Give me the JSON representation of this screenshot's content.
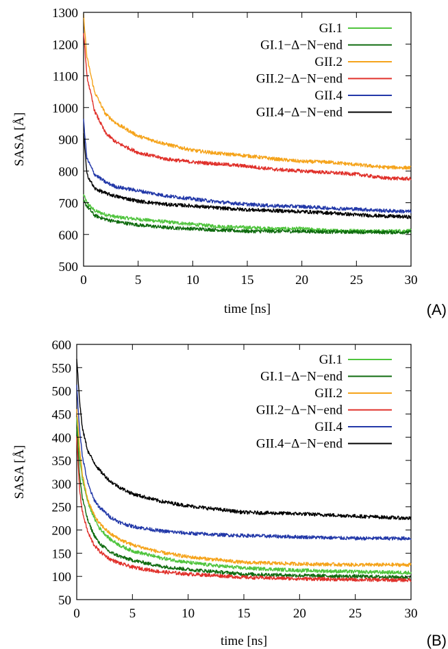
{
  "chart_data": [
    {
      "panel": "(A)",
      "type": "line",
      "xlabel": "time [ns]",
      "ylabel": "SASA [Å]",
      "xlim": [
        0,
        30
      ],
      "ylim": [
        500,
        1300
      ],
      "xticks": [
        0,
        5,
        10,
        15,
        20,
        25,
        30
      ],
      "yticks": [
        500,
        600,
        700,
        800,
        900,
        1000,
        1100,
        1200,
        1300
      ],
      "grid": false,
      "legend_position": "top-right",
      "series": [
        {
          "name": "GI.1",
          "color": "#4fc43d",
          "x": [
            0,
            0.3,
            1,
            2,
            3,
            5,
            7.5,
            10,
            12.5,
            15,
            17.5,
            20,
            22.5,
            25,
            27.5,
            30
          ],
          "values": [
            725,
            700,
            675,
            663,
            655,
            648,
            640,
            632,
            625,
            622,
            618,
            618,
            612,
            612,
            610,
            612
          ]
        },
        {
          "name": "GI.1−Δ−N−end",
          "color": "#0f6b0f",
          "x": [
            0,
            0.3,
            1,
            2,
            3,
            5,
            7.5,
            10,
            12.5,
            15,
            17.5,
            20,
            22.5,
            25,
            27.5,
            30
          ],
          "values": [
            705,
            690,
            660,
            648,
            640,
            630,
            622,
            618,
            614,
            610,
            610,
            610,
            608,
            608,
            607,
            607
          ]
        },
        {
          "name": "GII.2",
          "color": "#f5a31a",
          "x": [
            0,
            0.3,
            1,
            2,
            3,
            5,
            7.5,
            10,
            12.5,
            15,
            17.5,
            20,
            22.5,
            25,
            27.5,
            30
          ],
          "values": [
            1290,
            1160,
            1050,
            980,
            950,
            910,
            885,
            865,
            855,
            848,
            838,
            830,
            828,
            820,
            812,
            810
          ]
        },
        {
          "name": "GII.2−Δ−N−end",
          "color": "#e0302a",
          "x": [
            0,
            0.3,
            1,
            2,
            3,
            5,
            7.5,
            10,
            12.5,
            15,
            17.5,
            20,
            22.5,
            25,
            27.5,
            30
          ],
          "values": [
            1240,
            1100,
            990,
            920,
            890,
            858,
            838,
            828,
            822,
            815,
            805,
            800,
            795,
            790,
            778,
            775
          ]
        },
        {
          "name": "GII.4",
          "color": "#2238a8",
          "x": [
            0,
            0.3,
            1,
            2,
            3,
            5,
            7.5,
            10,
            12.5,
            15,
            17.5,
            20,
            22.5,
            25,
            27.5,
            30
          ],
          "values": [
            960,
            840,
            790,
            765,
            750,
            738,
            722,
            712,
            702,
            695,
            690,
            688,
            683,
            680,
            675,
            672
          ]
        },
        {
          "name": "GII.4−Δ−N−end",
          "color": "#000000",
          "x": [
            0,
            0.3,
            1,
            2,
            3,
            5,
            7.5,
            10,
            12.5,
            15,
            17.5,
            20,
            22.5,
            25,
            27.5,
            30
          ],
          "values": [
            920,
            790,
            745,
            730,
            720,
            705,
            695,
            690,
            683,
            678,
            675,
            672,
            668,
            662,
            658,
            655
          ]
        }
      ]
    },
    {
      "panel": "(B)",
      "type": "line",
      "xlabel": "time [ns]",
      "ylabel": "SASA [Å]",
      "xlim": [
        0,
        30
      ],
      "ylim": [
        50,
        600
      ],
      "xticks": [
        0,
        5,
        10,
        15,
        20,
        25,
        30
      ],
      "yticks": [
        50,
        100,
        150,
        200,
        250,
        300,
        350,
        400,
        450,
        500,
        550,
        600
      ],
      "grid": false,
      "legend_position": "top-right",
      "series": [
        {
          "name": "GI.1",
          "color": "#4fc43d",
          "x": [
            0,
            0.25,
            0.5,
            1,
            1.5,
            2,
            3,
            4,
            5,
            7.5,
            10,
            12.5,
            15,
            20,
            25,
            30
          ],
          "values": [
            440,
            360,
            310,
            260,
            230,
            205,
            180,
            165,
            155,
            140,
            130,
            123,
            118,
            113,
            110,
            108
          ]
        },
        {
          "name": "GI.1−Δ−N−end",
          "color": "#0f6b0f",
          "x": [
            0,
            0.25,
            0.5,
            1,
            1.5,
            2,
            3,
            4,
            5,
            7.5,
            10,
            12.5,
            15,
            20,
            25,
            30
          ],
          "values": [
            420,
            320,
            270,
            220,
            192,
            172,
            152,
            142,
            135,
            122,
            115,
            110,
            105,
            102,
            100,
            98
          ]
        },
        {
          "name": "GII.2",
          "color": "#f5a31a",
          "x": [
            0,
            0.25,
            0.5,
            1,
            1.5,
            2,
            3,
            4,
            5,
            7.5,
            10,
            12.5,
            15,
            20,
            25,
            30
          ],
          "values": [
            460,
            380,
            320,
            265,
            235,
            215,
            192,
            178,
            168,
            152,
            142,
            136,
            130,
            127,
            125,
            125
          ]
        },
        {
          "name": "GII.2−Δ−N−end",
          "color": "#e0302a",
          "x": [
            0,
            0.25,
            0.5,
            1,
            1.5,
            2,
            3,
            4,
            5,
            7.5,
            10,
            12.5,
            15,
            20,
            25,
            30
          ],
          "values": [
            400,
            290,
            240,
            195,
            170,
            155,
            137,
            127,
            120,
            110,
            105,
            102,
            98,
            95,
            93,
            92
          ]
        },
        {
          "name": "GII.4",
          "color": "#2238a8",
          "x": [
            0,
            0.25,
            0.5,
            1,
            1.5,
            2,
            3,
            4,
            5,
            7.5,
            10,
            12.5,
            15,
            20,
            25,
            30
          ],
          "values": [
            510,
            420,
            360,
            300,
            268,
            250,
            228,
            215,
            208,
            198,
            193,
            190,
            188,
            185,
            182,
            182
          ]
        },
        {
          "name": "GII.4−Δ−N−end",
          "color": "#000000",
          "x": [
            0,
            0.25,
            0.5,
            1,
            1.5,
            2,
            3,
            4,
            5,
            7.5,
            10,
            12.5,
            15,
            20,
            25,
            30
          ],
          "values": [
            570,
            480,
            420,
            370,
            348,
            330,
            305,
            290,
            278,
            262,
            252,
            245,
            238,
            235,
            230,
            225
          ]
        }
      ]
    }
  ]
}
